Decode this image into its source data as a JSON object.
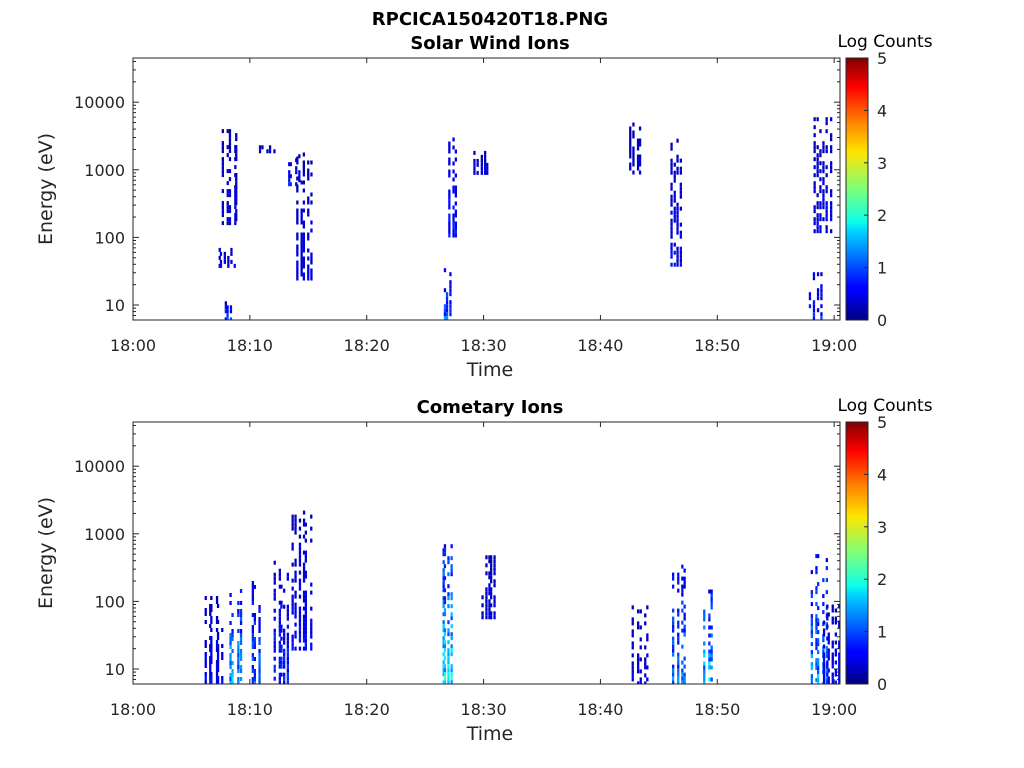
{
  "figure": {
    "title": "RPCICA150420T18.PNG"
  },
  "chart_data": [
    {
      "type": "heatmap",
      "title": "Solar Wind Ions",
      "xlabel": "Time",
      "ylabel": "Energy (eV)",
      "x_ticks": [
        "18:00",
        "18:10",
        "18:20",
        "18:30",
        "18:40",
        "18:50",
        "19:00"
      ],
      "x_range_minutes": [
        0,
        60.5
      ],
      "y_ticks": [
        "10",
        "100",
        "1000",
        "10000"
      ],
      "y_scale": "log",
      "y_range": [
        6,
        45000
      ],
      "colorbar": {
        "label": "Log Counts",
        "ticks": [
          "0",
          "1",
          "2",
          "3",
          "4",
          "5"
        ],
        "range": [
          0,
          5
        ],
        "colormap": "jet"
      },
      "clusters": [
        {
          "t": 8.2,
          "e_min": 6,
          "e_max": 13,
          "level": 0.9
        },
        {
          "t": 8.1,
          "e_min": 40,
          "e_max": 70,
          "level": 0.6
        },
        {
          "t": 8.4,
          "e_min": 160,
          "e_max": 4000,
          "level": 0.4
        },
        {
          "t": 11.5,
          "e_min": 1800,
          "e_max": 2300,
          "level": 0.5
        },
        {
          "t": 13.8,
          "e_min": 600,
          "e_max": 1700,
          "level": 0.7
        },
        {
          "t": 14.8,
          "e_min": 25,
          "e_max": 1800,
          "level": 0.5
        },
        {
          "t": 27.0,
          "e_min": 6,
          "e_max": 35,
          "level": 1.2
        },
        {
          "t": 27.4,
          "e_min": 100,
          "e_max": 3000,
          "level": 0.8
        },
        {
          "t": 29.8,
          "e_min": 900,
          "e_max": 1900,
          "level": 0.5
        },
        {
          "t": 43.0,
          "e_min": 900,
          "e_max": 5000,
          "level": 0.4
        },
        {
          "t": 46.5,
          "e_min": 40,
          "e_max": 3300,
          "level": 0.6
        },
        {
          "t": 58.5,
          "e_min": 6,
          "e_max": 35,
          "level": 0.8
        },
        {
          "t": 59.0,
          "e_min": 120,
          "e_max": 6000,
          "level": 0.5
        }
      ]
    },
    {
      "type": "heatmap",
      "title": "Cometary Ions",
      "xlabel": "Time",
      "ylabel": "Energy (eV)",
      "x_ticks": [
        "18:00",
        "18:10",
        "18:20",
        "18:30",
        "18:40",
        "18:50",
        "19:00"
      ],
      "x_range_minutes": [
        0,
        60.5
      ],
      "y_ticks": [
        "10",
        "100",
        "1000",
        "10000"
      ],
      "y_scale": "log",
      "y_range": [
        6,
        45000
      ],
      "colorbar": {
        "label": "Log Counts",
        "ticks": [
          "0",
          "1",
          "2",
          "3",
          "4",
          "5"
        ],
        "range": [
          0,
          5
        ],
        "colormap": "jet"
      },
      "clusters": [
        {
          "t": 7.0,
          "e_min": 6,
          "e_max": 120,
          "level": 0.6
        },
        {
          "t": 8.8,
          "e_min": 6,
          "e_max": 200,
          "level": 1.6
        },
        {
          "t": 10.5,
          "e_min": 6,
          "e_max": 200,
          "level": 1.2
        },
        {
          "t": 12.8,
          "e_min": 6,
          "e_max": 400,
          "level": 0.8
        },
        {
          "t": 14.5,
          "e_min": 20,
          "e_max": 2200,
          "level": 0.6
        },
        {
          "t": 27.0,
          "e_min": 6,
          "e_max": 700,
          "level": 1.9
        },
        {
          "t": 30.5,
          "e_min": 60,
          "e_max": 550,
          "level": 0.4
        },
        {
          "t": 43.5,
          "e_min": 6,
          "e_max": 100,
          "level": 0.5
        },
        {
          "t": 46.8,
          "e_min": 6,
          "e_max": 350,
          "level": 1.3
        },
        {
          "t": 49.3,
          "e_min": 6,
          "e_max": 150,
          "level": 1.8
        },
        {
          "t": 58.8,
          "e_min": 6,
          "e_max": 500,
          "level": 1.5
        },
        {
          "t": 59.8,
          "e_min": 6,
          "e_max": 90,
          "level": 0.7
        }
      ]
    }
  ]
}
